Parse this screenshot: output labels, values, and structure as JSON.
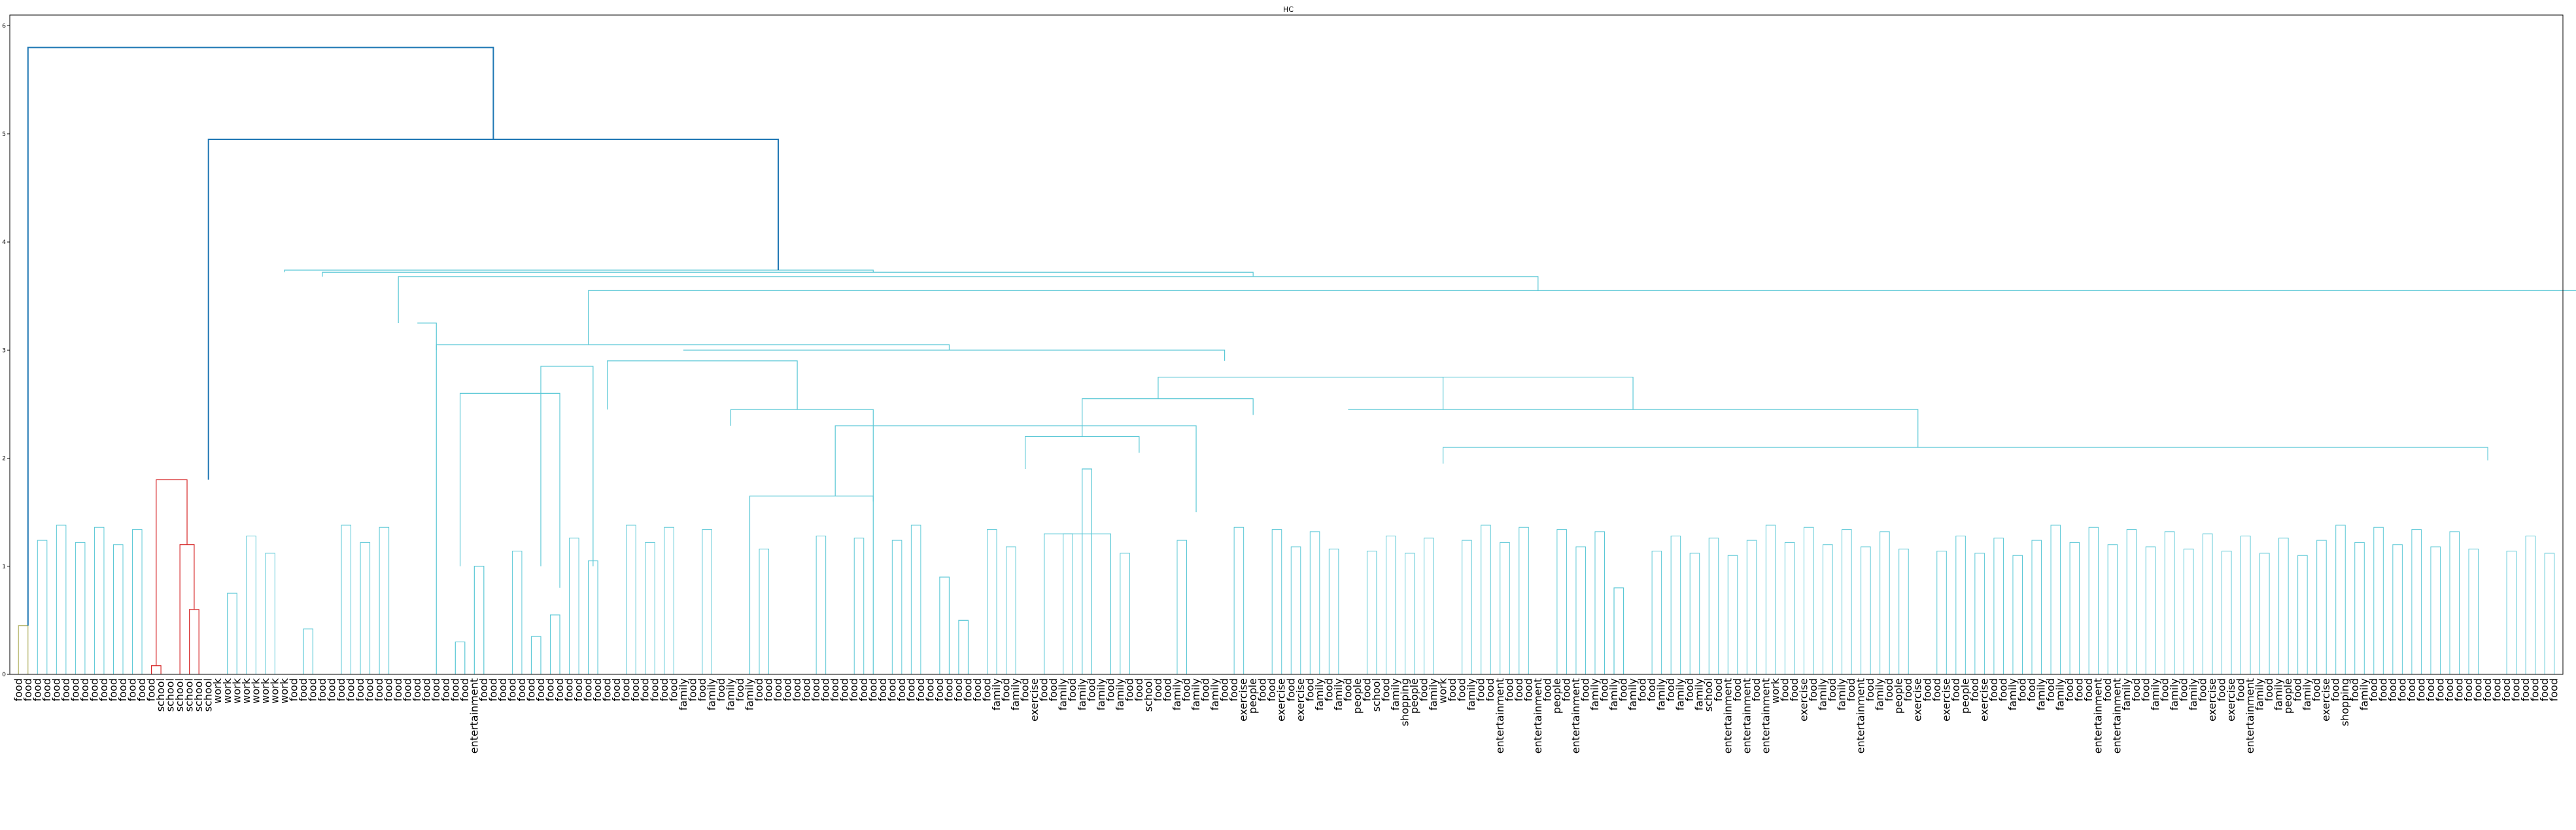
{
  "chart_data": {
    "type": "dendrogram",
    "title": "HC",
    "xlabel": "",
    "ylabel": "",
    "ylim": [
      0,
      6.1
    ],
    "yticks": [
      "0",
      "1",
      "2",
      "3",
      "4",
      "5",
      "6"
    ],
    "grid": false,
    "colors": {
      "group_olive": "#b5b56a",
      "group_red": "#d62728",
      "group_cyan": "#5bc8d6",
      "above_threshold": "#1f77b4"
    },
    "leaves": [
      "food",
      "food",
      "food",
      "food",
      "food",
      "food",
      "food",
      "food",
      "food",
      "food",
      "food",
      "food",
      "food",
      "food",
      "food",
      "school",
      "school",
      "school",
      "school",
      "school",
      "school",
      "work",
      "work",
      "work",
      "work",
      "work",
      "work",
      "work",
      "work",
      "food",
      "food",
      "food",
      "food",
      "food",
      "food",
      "food",
      "food",
      "food",
      "food",
      "food",
      "food",
      "food",
      "food",
      "food",
      "food",
      "food",
      "food",
      "food",
      "entertainment",
      "food",
      "food",
      "food",
      "food",
      "food",
      "food",
      "food",
      "food",
      "food",
      "food",
      "food",
      "food",
      "food",
      "food",
      "food",
      "food",
      "food",
      "food",
      "food",
      "food",
      "food",
      "family",
      "food",
      "food",
      "family",
      "food",
      "family",
      "food",
      "family",
      "food",
      "food",
      "food",
      "food",
      "food",
      "food",
      "food",
      "food",
      "food",
      "food",
      "food",
      "food",
      "food",
      "food",
      "food",
      "food",
      "food",
      "food",
      "food",
      "food",
      "food",
      "food",
      "food",
      "food",
      "food",
      "family",
      "food",
      "family",
      "food",
      "exercise",
      "food",
      "food",
      "family",
      "food",
      "family",
      "food",
      "family",
      "food",
      "family",
      "food",
      "food",
      "school",
      "food",
      "food",
      "family",
      "food",
      "family",
      "food",
      "family",
      "food",
      "food",
      "exercise",
      "people",
      "food",
      "food",
      "exercise",
      "food",
      "exercise",
      "food",
      "family",
      "food",
      "family",
      "food",
      "people",
      "food",
      "school",
      "food",
      "family",
      "shopping",
      "people",
      "food",
      "family",
      "work",
      "food",
      "food",
      "family",
      "food",
      "food",
      "entertainment",
      "food",
      "food",
      "food",
      "entertainment",
      "food",
      "people",
      "food",
      "entertainment",
      "food",
      "family",
      "food",
      "family",
      "food",
      "family",
      "food",
      "food",
      "family",
      "food",
      "family",
      "food",
      "family",
      "school",
      "food",
      "entertainment",
      "food",
      "entertainment",
      "food",
      "entertainment",
      "work",
      "food",
      "food",
      "exercise",
      "food",
      "family",
      "food",
      "family",
      "food",
      "entertainment",
      "food",
      "family",
      "food",
      "people",
      "food",
      "exercise",
      "food",
      "food",
      "exercise",
      "food",
      "people",
      "food",
      "exercise",
      "food",
      "food",
      "family",
      "food",
      "food",
      "family",
      "food",
      "family",
      "food",
      "food",
      "food",
      "entertainment",
      "food",
      "entertainment",
      "family",
      "food",
      "food",
      "family",
      "food",
      "family",
      "food",
      "family",
      "food",
      "exercise",
      "food",
      "exercise",
      "food",
      "entertainment",
      "family",
      "food",
      "family",
      "people",
      "food",
      "family",
      "food",
      "exercise",
      "food",
      "shopping",
      "food",
      "family",
      "food",
      "food",
      "food",
      "food",
      "food",
      "food",
      "food",
      "food",
      "food",
      "food",
      "food",
      "food",
      "food",
      "food",
      "food",
      "food",
      "food",
      "food",
      "food",
      "food"
    ],
    "merges": [
      {
        "left": [
          0,
          0
        ],
        "right": [
          1,
          0
        ],
        "height": 0.45,
        "group": "group_olive"
      },
      {
        "left": [
          14,
          0
        ],
        "right": [
          15,
          0
        ],
        "height": 0.08,
        "group": "group_red"
      },
      {
        "left": [
          18,
          0
        ],
        "right": [
          19,
          0
        ],
        "height": 0.6,
        "group": "group_red"
      },
      {
        "left": [
          17,
          0
        ],
        "right": [
          18.5,
          0.6
        ],
        "height": 1.2,
        "group": "group_red"
      },
      {
        "left": [
          14.5,
          0.08
        ],
        "right": [
          17.75,
          1.2
        ],
        "height": 1.8,
        "group": "group_red"
      },
      {
        "left": [
          22,
          0
        ],
        "right": [
          23,
          0
        ],
        "height": 0.75,
        "group": "group_cyan"
      },
      {
        "left": [
          30,
          0
        ],
        "right": [
          31,
          0
        ],
        "height": 0.42,
        "group": "group_cyan"
      },
      {
        "left": [
          46,
          0
        ],
        "right": [
          47,
          0
        ],
        "height": 0.3,
        "group": "group_cyan"
      },
      {
        "left": [
          48,
          0
        ],
        "right": [
          49,
          0
        ],
        "height": 1.0,
        "group": "group_cyan"
      },
      {
        "left": [
          54,
          0
        ],
        "right": [
          55,
          0
        ],
        "height": 0.35,
        "group": "group_cyan"
      },
      {
        "left": [
          56,
          0
        ],
        "right": [
          57,
          0
        ],
        "height": 0.55,
        "group": "group_cyan"
      },
      {
        "left": [
          60,
          0
        ],
        "right": [
          61,
          0
        ],
        "height": 1.05,
        "group": "group_cyan"
      },
      {
        "left": [
          77,
          0
        ],
        "right": [
          90,
          0
        ],
        "height": 1.65,
        "group": "group_cyan"
      },
      {
        "left": [
          97,
          0
        ],
        "right": [
          98,
          0
        ],
        "height": 0.9,
        "group": "group_cyan"
      },
      {
        "left": [
          99,
          0
        ],
        "right": [
          100,
          0
        ],
        "height": 0.5,
        "group": "group_cyan"
      },
      {
        "left": [
          108,
          0
        ],
        "right": [
          115,
          0
        ],
        "height": 1.3,
        "group": "group_cyan"
      },
      {
        "left": [
          112,
          0
        ],
        "right": [
          113,
          0
        ],
        "height": 1.9,
        "group": "group_cyan"
      },
      {
        "left": [
          168,
          0
        ],
        "right": [
          169,
          0
        ],
        "height": 0.8,
        "group": "group_cyan"
      },
      {
        "left": [
          86,
          1.65
        ],
        "right": [
          124,
          1.5
        ],
        "height": 2.3,
        "group": "group_cyan"
      },
      {
        "left": [
          75,
          2.3
        ],
        "right": [
          90,
          1.6
        ],
        "height": 2.45,
        "group": "group_cyan"
      },
      {
        "left": [
          46.5,
          1.0
        ],
        "right": [
          57,
          0.8
        ],
        "height": 2.6,
        "group": "group_cyan"
      },
      {
        "left": [
          55,
          1.0
        ],
        "right": [
          60.5,
          1.0
        ],
        "height": 2.85,
        "group": "group_cyan"
      },
      {
        "left": [
          62,
          2.45
        ],
        "right": [
          82,
          2.45
        ],
        "height": 2.9,
        "group": "group_cyan"
      },
      {
        "left": [
          106,
          1.9
        ],
        "right": [
          118,
          2.05
        ],
        "height": 2.2,
        "group": "group_cyan"
      },
      {
        "left": [
          112,
          2.2
        ],
        "right": [
          130,
          2.4
        ],
        "height": 2.55,
        "group": "group_cyan"
      },
      {
        "left": [
          120,
          2.55
        ],
        "right": [
          150,
          2.45
        ],
        "height": 2.75,
        "group": "group_cyan"
      },
      {
        "left": [
          150,
          1.95
        ],
        "right": [
          260,
          1.98
        ],
        "height": 2.1,
        "group": "group_cyan"
      },
      {
        "left": [
          140,
          2.45
        ],
        "right": [
          200,
          2.1
        ],
        "height": 2.45,
        "group": "group_cyan"
      },
      {
        "left": [
          120,
          2.75
        ],
        "right": [
          170,
          2.45
        ],
        "height": 2.75,
        "group": "group_cyan"
      },
      {
        "left": [
          70,
          3.0
        ],
        "right": [
          127,
          2.9
        ],
        "height": 3.0,
        "group": "group_cyan"
      },
      {
        "left": [
          44,
          3.0
        ],
        "right": [
          98,
          3.0
        ],
        "height": 3.05,
        "group": "group_cyan"
      },
      {
        "left": [
          42,
          3.25
        ],
        "right": [
          44,
          0
        ],
        "height": 3.25,
        "group": "group_cyan"
      },
      {
        "left": [
          290,
          1.6
        ],
        "right": [
          305,
          1.7
        ],
        "height": 1.98,
        "group": "group_cyan"
      },
      {
        "left": [
          300,
          2.58
        ],
        "right": [
          312,
          2.15
        ],
        "height": 2.6,
        "group": "group_cyan"
      },
      {
        "left": [
          298,
          3.05
        ],
        "right": [
          306,
          2.6
        ],
        "height": 3.05,
        "group": "group_cyan"
      },
      {
        "left": [
          60,
          3.05
        ],
        "right": [
          300,
          3.05
        ],
        "height": 3.55,
        "group": "group_cyan"
      },
      {
        "left": [
          40,
          3.25
        ],
        "right": [
          160,
          3.55
        ],
        "height": 3.68,
        "group": "group_cyan"
      },
      {
        "left": [
          32,
          3.68
        ],
        "right": [
          130,
          3.68
        ],
        "height": 3.72,
        "group": "group_cyan"
      },
      {
        "left": [
          28,
          3.72
        ],
        "right": [
          90,
          3.72
        ],
        "height": 3.74,
        "group": "group_cyan"
      },
      {
        "left": [
          20,
          1.8
        ],
        "right": [
          80,
          3.74
        ],
        "height": 4.95,
        "group": "above_threshold"
      },
      {
        "left": [
          1,
          0.45
        ],
        "right": [
          50,
          4.95
        ],
        "height": 5.8,
        "group": "above_threshold"
      }
    ]
  }
}
